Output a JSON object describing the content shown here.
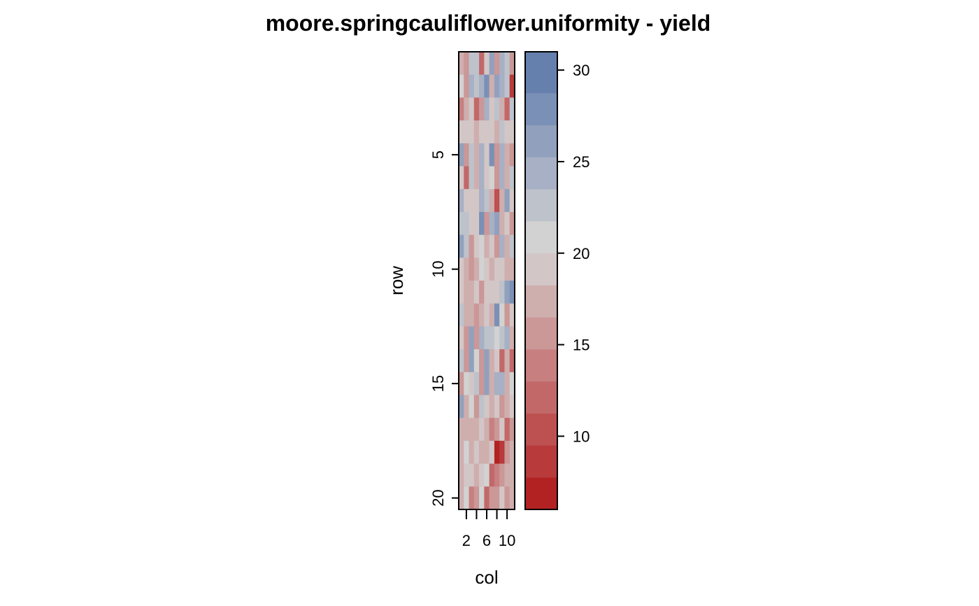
{
  "chart_data": {
    "type": "heatmap",
    "title": "moore.springcauliflower.uniformity - yield",
    "xlabel": "col",
    "ylabel": "row",
    "n_cols": 11,
    "n_rows": 20,
    "x_ticks": [
      2,
      4,
      6,
      8,
      10
    ],
    "x_tick_labels": [
      "2",
      "",
      "6",
      "",
      "10"
    ],
    "y_ticks": [
      5,
      10,
      15,
      20
    ],
    "y_tick_labels": [
      "5",
      "10",
      "15",
      "20"
    ],
    "value_range": [
      6,
      31
    ],
    "legend": {
      "position": "right",
      "breaks": [
        6,
        7.75,
        9.5,
        11.25,
        13,
        14.75,
        16.5,
        18.25,
        20,
        21.75,
        23.5,
        25.25,
        27,
        28.75,
        31
      ],
      "colors": [
        "#b22222",
        "#b83a3a",
        "#bd5050",
        "#c26868",
        "#c77f7f",
        "#cb9797",
        "#cfaeae",
        "#d3c6c6",
        "#d2d2d2",
        "#bdc2cb",
        "#a7b0c4",
        "#91a1bd",
        "#7b90b6",
        "#6680ae",
        "#4f6ea6"
      ],
      "ticks": [
        10,
        15,
        20,
        25,
        30
      ],
      "tick_labels": [
        "10",
        "15",
        "20",
        "25",
        "30"
      ]
    },
    "values": [
      [
        18,
        15,
        22,
        22,
        12,
        20,
        27,
        15,
        24,
        23,
        16
      ],
      [
        21,
        16,
        24,
        22,
        24,
        28,
        17,
        26,
        24,
        22,
        8
      ],
      [
        14,
        17,
        20,
        13,
        16,
        24,
        20,
        23,
        17,
        12,
        22
      ],
      [
        19,
        20,
        20,
        18,
        20,
        20,
        19,
        18,
        22,
        19,
        20
      ],
      [
        27,
        15,
        22,
        18,
        24,
        20,
        28,
        15,
        24,
        17,
        15
      ],
      [
        19,
        13,
        22,
        18,
        25,
        20,
        21,
        16,
        24,
        17,
        23
      ],
      [
        24,
        19,
        20,
        19,
        25,
        23,
        17,
        11,
        18,
        27,
        19
      ],
      [
        23,
        22,
        20,
        19,
        28,
        15,
        24,
        27,
        17,
        20,
        16
      ],
      [
        26,
        23,
        16,
        19,
        21,
        17,
        20,
        15,
        24,
        17,
        23
      ],
      [
        20,
        18,
        15,
        17,
        21,
        20,
        17,
        19,
        20,
        18,
        17
      ],
      [
        20,
        18,
        17,
        20,
        16,
        20,
        20,
        19,
        22,
        27,
        28
      ],
      [
        22,
        17,
        17,
        16,
        17,
        20,
        18,
        28,
        21,
        15,
        20
      ],
      [
        20,
        15,
        27,
        16,
        24,
        22,
        23,
        21,
        23,
        24,
        17
      ],
      [
        22,
        16,
        26,
        21,
        16,
        27,
        17,
        20,
        12,
        18,
        13
      ],
      [
        16,
        21,
        20,
        22,
        16,
        26,
        18,
        24,
        24,
        18,
        21
      ],
      [
        27,
        18,
        21,
        16,
        22,
        19,
        17,
        20,
        16,
        18,
        20
      ],
      [
        18,
        18,
        17,
        17,
        20,
        17,
        14,
        16,
        20,
        13,
        16
      ],
      [
        17,
        21,
        18,
        20,
        18,
        18,
        20,
        7,
        8,
        16,
        17
      ],
      [
        17,
        20,
        19,
        17,
        19,
        21,
        12,
        14,
        16,
        18,
        18
      ],
      [
        17,
        21,
        14,
        15,
        21,
        13,
        16,
        16,
        20,
        15,
        17
      ]
    ]
  }
}
